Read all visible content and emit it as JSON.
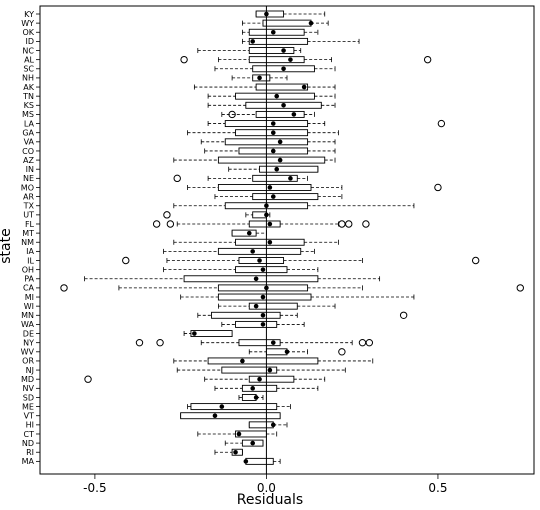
{
  "chart_data": {
    "type": "boxplot",
    "orientation": "horizontal",
    "xlabel": "Residuals",
    "ylabel": "state",
    "xlim": [
      -0.66,
      0.78
    ],
    "x_ticks": [
      -0.5,
      0.0,
      0.5
    ],
    "x_tick_labels": [
      "-0.5",
      "0.0",
      "0.5"
    ],
    "reference_line": 0.0,
    "grid": false,
    "boxes": [
      {
        "state": "KY",
        "wmin": -0.03,
        "q1": -0.03,
        "median": 0.0,
        "q3": 0.05,
        "wmax": 0.17,
        "outliers": []
      },
      {
        "state": "WY",
        "wmin": -0.07,
        "q1": -0.01,
        "median": 0.13,
        "q3": 0.13,
        "wmax": 0.18,
        "outliers": []
      },
      {
        "state": "OK",
        "wmin": -0.07,
        "q1": -0.05,
        "median": 0.02,
        "q3": 0.11,
        "wmax": 0.15,
        "outliers": []
      },
      {
        "state": "ID",
        "wmin": -0.07,
        "q1": -0.05,
        "median": -0.04,
        "q3": 0.12,
        "wmax": 0.27,
        "outliers": []
      },
      {
        "state": "NC",
        "wmin": -0.2,
        "q1": -0.05,
        "median": 0.05,
        "q3": 0.08,
        "wmax": 0.1,
        "outliers": []
      },
      {
        "state": "AL",
        "wmin": -0.14,
        "q1": -0.05,
        "median": 0.07,
        "q3": 0.11,
        "wmax": 0.19,
        "outliers": [
          -0.24,
          0.47
        ]
      },
      {
        "state": "SC",
        "wmin": -0.15,
        "q1": -0.04,
        "median": 0.05,
        "q3": 0.14,
        "wmax": 0.2,
        "outliers": []
      },
      {
        "state": "NH",
        "wmin": -0.1,
        "q1": -0.04,
        "median": -0.02,
        "q3": 0.01,
        "wmax": 0.06,
        "outliers": []
      },
      {
        "state": "AK",
        "wmin": -0.21,
        "q1": -0.03,
        "median": 0.11,
        "q3": 0.12,
        "wmax": 0.2,
        "outliers": []
      },
      {
        "state": "TN",
        "wmin": -0.17,
        "q1": -0.09,
        "median": 0.03,
        "q3": 0.14,
        "wmax": 0.2,
        "outliers": []
      },
      {
        "state": "KS",
        "wmin": -0.17,
        "q1": -0.06,
        "median": 0.05,
        "q3": 0.16,
        "wmax": 0.2,
        "outliers": []
      },
      {
        "state": "MS",
        "wmin": -0.13,
        "q1": -0.03,
        "median": 0.08,
        "q3": 0.11,
        "wmax": 0.14,
        "outliers": [
          -0.1
        ]
      },
      {
        "state": "LA",
        "wmin": -0.17,
        "q1": -0.12,
        "median": 0.02,
        "q3": 0.12,
        "wmax": 0.17,
        "outliers": [
          0.51
        ]
      },
      {
        "state": "GA",
        "wmin": -0.23,
        "q1": -0.09,
        "median": 0.02,
        "q3": 0.12,
        "wmax": 0.21,
        "outliers": []
      },
      {
        "state": "VA",
        "wmin": -0.19,
        "q1": -0.12,
        "median": 0.04,
        "q3": 0.12,
        "wmax": 0.2,
        "outliers": []
      },
      {
        "state": "CO",
        "wmin": -0.18,
        "q1": -0.08,
        "median": 0.02,
        "q3": 0.12,
        "wmax": 0.2,
        "outliers": []
      },
      {
        "state": "AZ",
        "wmin": -0.27,
        "q1": -0.14,
        "median": 0.04,
        "q3": 0.17,
        "wmax": 0.2,
        "outliers": []
      },
      {
        "state": "IN",
        "wmin": -0.11,
        "q1": -0.02,
        "median": 0.03,
        "q3": 0.15,
        "wmax": 0.15,
        "outliers": []
      },
      {
        "state": "NE",
        "wmin": -0.17,
        "q1": -0.04,
        "median": 0.07,
        "q3": 0.09,
        "wmax": 0.12,
        "outliers": [
          -0.26
        ]
      },
      {
        "state": "MO",
        "wmin": -0.23,
        "q1": -0.14,
        "median": 0.01,
        "q3": 0.13,
        "wmax": 0.22,
        "outliers": [
          0.5
        ]
      },
      {
        "state": "AR",
        "wmin": -0.15,
        "q1": -0.04,
        "median": 0.02,
        "q3": 0.15,
        "wmax": 0.22,
        "outliers": []
      },
      {
        "state": "TX",
        "wmin": -0.27,
        "q1": -0.12,
        "median": 0.0,
        "q3": 0.12,
        "wmax": 0.43,
        "outliers": []
      },
      {
        "state": "UT",
        "wmin": -0.06,
        "q1": -0.04,
        "median": 0.0,
        "q3": 0.0,
        "wmax": 0.01,
        "outliers": [
          -0.29
        ]
      },
      {
        "state": "FL",
        "wmin": -0.26,
        "q1": -0.05,
        "median": 0.01,
        "q3": 0.04,
        "wmax": 0.21,
        "outliers": [
          -0.32,
          -0.28,
          0.22,
          0.24,
          0.29
        ]
      },
      {
        "state": "MT",
        "wmin": -0.1,
        "q1": -0.1,
        "median": -0.05,
        "q3": -0.03,
        "wmax": 0.0,
        "outliers": []
      },
      {
        "state": "NM",
        "wmin": -0.27,
        "q1": -0.09,
        "median": 0.01,
        "q3": 0.11,
        "wmax": 0.21,
        "outliers": []
      },
      {
        "state": "IA",
        "wmin": -0.3,
        "q1": -0.14,
        "median": -0.04,
        "q3": 0.1,
        "wmax": 0.14,
        "outliers": []
      },
      {
        "state": "IL",
        "wmin": -0.29,
        "q1": -0.08,
        "median": -0.02,
        "q3": 0.05,
        "wmax": 0.28,
        "outliers": [
          -0.41,
          0.61
        ]
      },
      {
        "state": "OH",
        "wmin": -0.3,
        "q1": -0.09,
        "median": -0.01,
        "q3": 0.06,
        "wmax": 0.15,
        "outliers": []
      },
      {
        "state": "PA",
        "wmin": -0.53,
        "q1": -0.24,
        "median": -0.03,
        "q3": 0.15,
        "wmax": 0.33,
        "outliers": []
      },
      {
        "state": "CA",
        "wmin": -0.43,
        "q1": -0.14,
        "median": 0.0,
        "q3": 0.12,
        "wmax": 0.28,
        "outliers": [
          -0.59,
          0.74
        ]
      },
      {
        "state": "MI",
        "wmin": -0.25,
        "q1": -0.14,
        "median": -0.01,
        "q3": 0.13,
        "wmax": 0.43,
        "outliers": []
      },
      {
        "state": "WI",
        "wmin": -0.14,
        "q1": -0.05,
        "median": -0.03,
        "q3": 0.09,
        "wmax": 0.2,
        "outliers": []
      },
      {
        "state": "MN",
        "wmin": -0.2,
        "q1": -0.16,
        "median": -0.01,
        "q3": 0.04,
        "wmax": 0.09,
        "outliers": [
          0.4
        ]
      },
      {
        "state": "WA",
        "wmin": -0.13,
        "q1": -0.09,
        "median": -0.01,
        "q3": 0.03,
        "wmax": 0.11,
        "outliers": []
      },
      {
        "state": "DE",
        "wmin": -0.24,
        "q1": -0.22,
        "median": -0.21,
        "q3": -0.1,
        "wmax": -0.1,
        "outliers": []
      },
      {
        "state": "NY",
        "wmin": -0.19,
        "q1": -0.08,
        "median": 0.02,
        "q3": 0.04,
        "wmax": 0.25,
        "outliers": [
          -0.37,
          -0.31,
          0.28,
          0.3
        ]
      },
      {
        "state": "WV",
        "wmin": -0.05,
        "q1": 0.0,
        "median": 0.06,
        "q3": 0.06,
        "wmax": 0.12,
        "outliers": [
          0.22
        ]
      },
      {
        "state": "OR",
        "wmin": -0.27,
        "q1": -0.17,
        "median": -0.07,
        "q3": 0.15,
        "wmax": 0.31,
        "outliers": []
      },
      {
        "state": "NJ",
        "wmin": -0.26,
        "q1": -0.13,
        "median": 0.01,
        "q3": 0.03,
        "wmax": 0.23,
        "outliers": []
      },
      {
        "state": "MD",
        "wmin": -0.18,
        "q1": -0.05,
        "median": -0.02,
        "q3": 0.08,
        "wmax": 0.17,
        "outliers": [
          -0.52
        ]
      },
      {
        "state": "NV",
        "wmin": -0.15,
        "q1": -0.07,
        "median": -0.04,
        "q3": 0.03,
        "wmax": 0.15,
        "outliers": []
      },
      {
        "state": "SD",
        "wmin": -0.08,
        "q1": -0.07,
        "median": -0.03,
        "q3": -0.03,
        "wmax": -0.01,
        "outliers": []
      },
      {
        "state": "ME",
        "wmin": -0.23,
        "q1": -0.22,
        "median": -0.13,
        "q3": 0.03,
        "wmax": 0.07,
        "outliers": []
      },
      {
        "state": "VT",
        "wmin": -0.25,
        "q1": -0.25,
        "median": -0.15,
        "q3": 0.04,
        "wmax": 0.04,
        "outliers": []
      },
      {
        "state": "HI",
        "wmin": -0.05,
        "q1": -0.05,
        "median": 0.02,
        "q3": 0.02,
        "wmax": 0.06,
        "outliers": []
      },
      {
        "state": "CT",
        "wmin": -0.2,
        "q1": -0.09,
        "median": -0.08,
        "q3": 0.0,
        "wmax": 0.03,
        "outliers": []
      },
      {
        "state": "ND",
        "wmin": -0.12,
        "q1": -0.07,
        "median": -0.04,
        "q3": -0.01,
        "wmax": -0.01,
        "outliers": []
      },
      {
        "state": "RI",
        "wmin": -0.15,
        "q1": -0.1,
        "median": -0.09,
        "q3": -0.07,
        "wmax": -0.07,
        "outliers": []
      },
      {
        "state": "MA",
        "wmin": -0.06,
        "q1": -0.06,
        "median": -0.06,
        "q3": 0.02,
        "wmax": 0.04,
        "outliers": []
      }
    ]
  }
}
